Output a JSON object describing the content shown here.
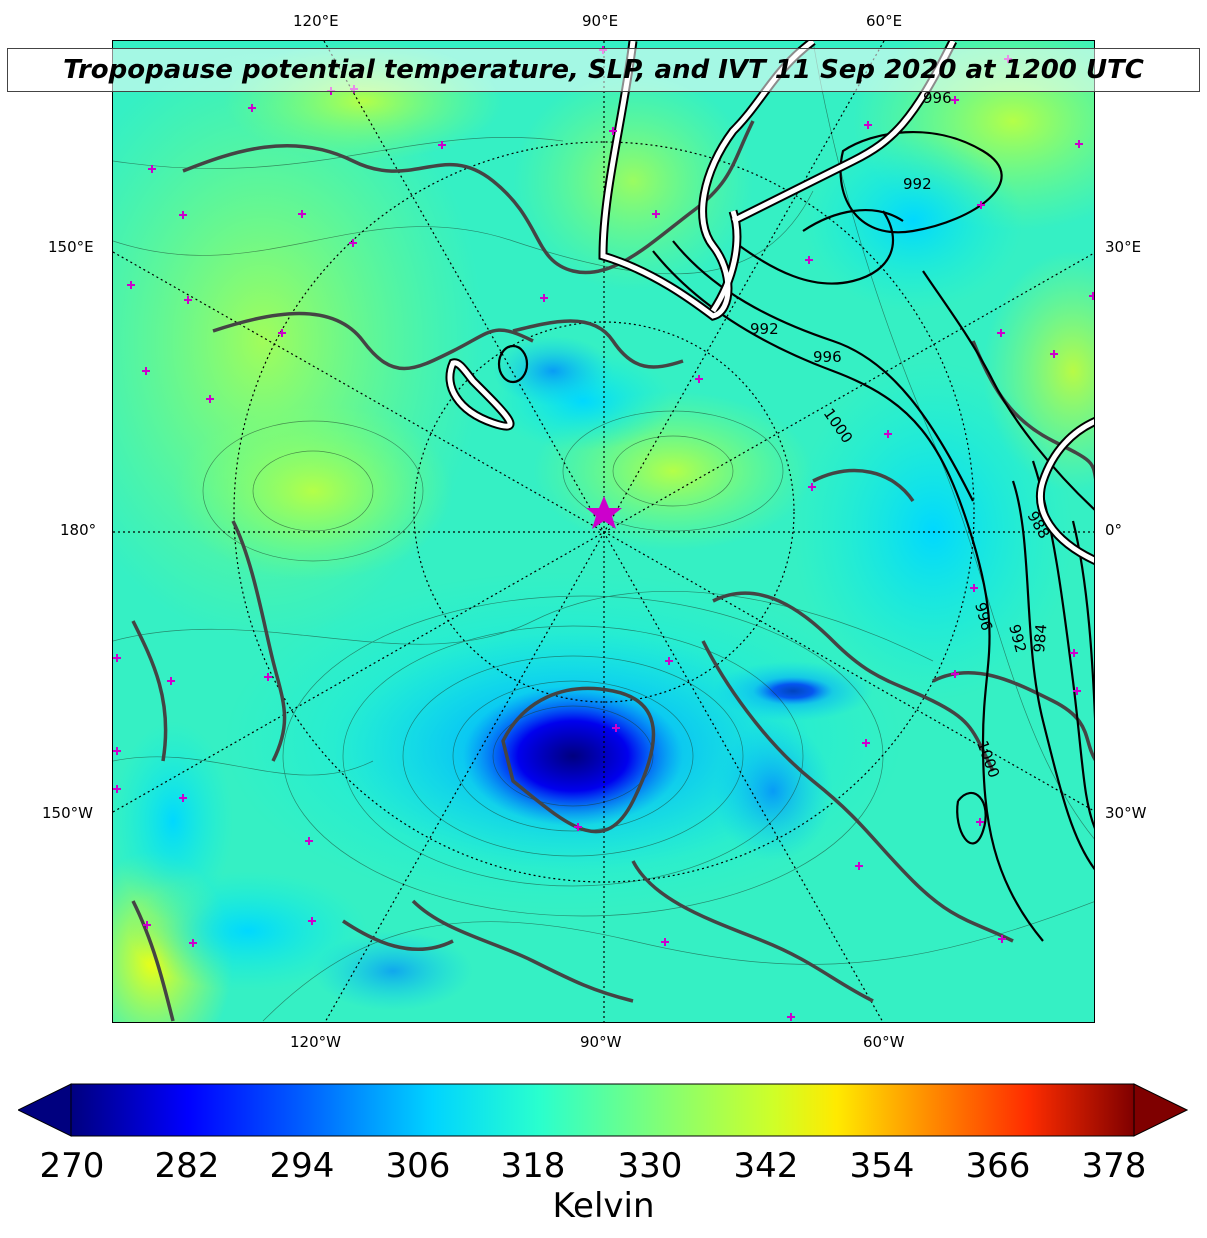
{
  "title": "Tropopause potential temperature, SLP, and IVT 11 Sep 2020 at 1200 UTC",
  "longitude_labels": {
    "top": [
      "120°E",
      "90°E",
      "60°E"
    ],
    "bottom": [
      "120°W",
      "90°W",
      "60°W"
    ],
    "left": [
      "150°E",
      "180°",
      "150°W"
    ],
    "right": [
      "30°E",
      "0°",
      "30°W"
    ]
  },
  "slp_contour_labels": [
    "996",
    "992",
    "992",
    "996",
    "1000",
    "988",
    "996",
    "992",
    "984",
    "1000"
  ],
  "colorbar": {
    "label": "Kelvin",
    "ticks": [
      "270",
      "282",
      "294",
      "306",
      "318",
      "330",
      "342",
      "354",
      "366",
      "378"
    ],
    "colors": [
      "#00007f",
      "#0000ff",
      "#007fff",
      "#00e5ff",
      "#29ffce",
      "#a0ff56",
      "#ffff00",
      "#ff9400",
      "#ff1d00",
      "#7f0000"
    ]
  },
  "map_colors": {
    "ocean_field": "#35f0c4",
    "coast": "#444444",
    "star": "#cc00cc"
  },
  "legend_icons": [
    "star-marker",
    "cross-marker"
  ]
}
